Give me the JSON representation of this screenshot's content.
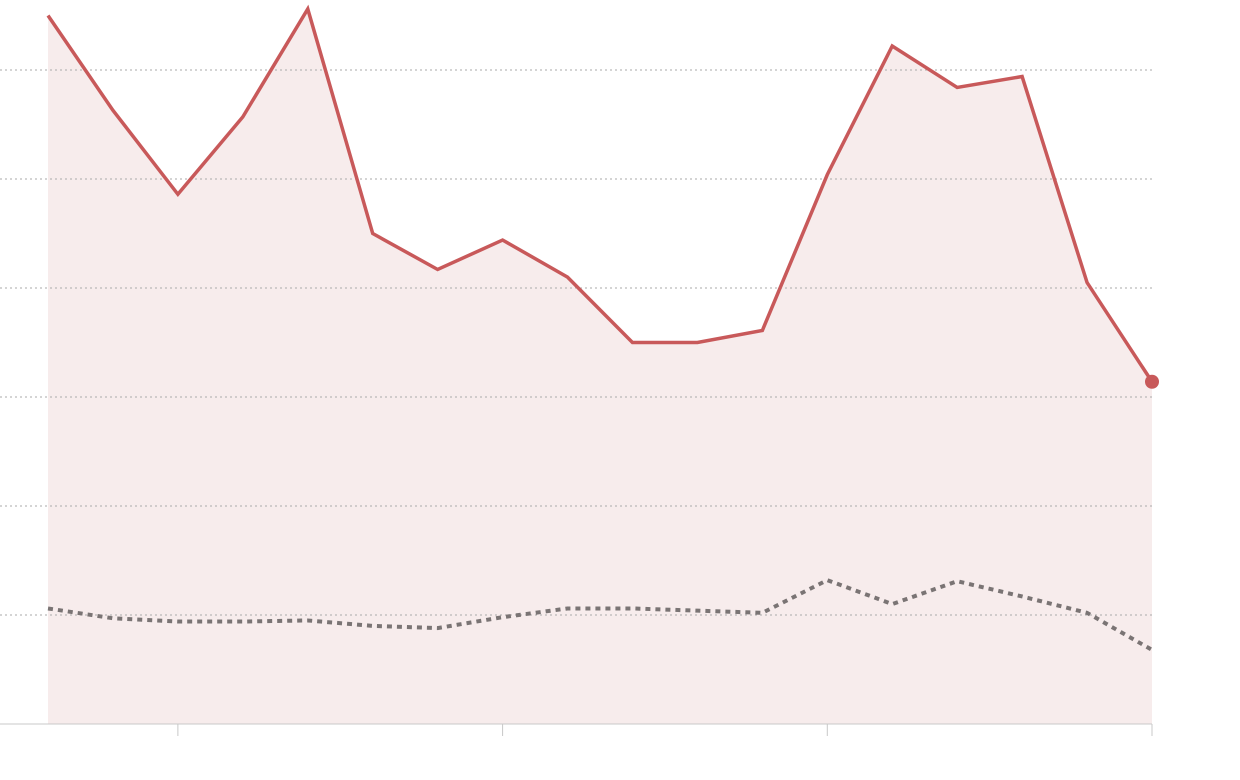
{
  "chart_data": {
    "type": "line",
    "x": [
      0,
      1,
      2,
      3,
      4,
      5,
      6,
      7,
      8,
      9,
      10,
      11,
      12,
      13,
      14,
      15,
      16,
      17
    ],
    "xlim": [
      0,
      17
    ],
    "xticks": [
      2,
      7,
      12,
      17
    ],
    "ylim": [
      0,
      6
    ],
    "yticks": [
      0,
      1,
      2,
      3,
      4,
      5,
      6
    ],
    "grid": true,
    "series": [
      {
        "color": "#c8595a",
        "fill": "#f7ecec",
        "style": "solid",
        "values": [
          6.5,
          5.63,
          4.86,
          5.57,
          6.56,
          4.5,
          4.17,
          4.44,
          4.1,
          3.5,
          3.5,
          3.61,
          5.04,
          6.22,
          5.84,
          5.94,
          4.05,
          3.14
        ]
      },
      {
        "color": "#7a7474",
        "style": "dotted",
        "values": [
          1.06,
          0.97,
          0.94,
          0.94,
          0.95,
          0.9,
          0.88,
          0.98,
          1.06,
          1.06,
          1.04,
          1.02,
          1.32,
          1.1,
          1.31,
          1.17,
          1.02,
          0.68
        ]
      }
    ]
  }
}
